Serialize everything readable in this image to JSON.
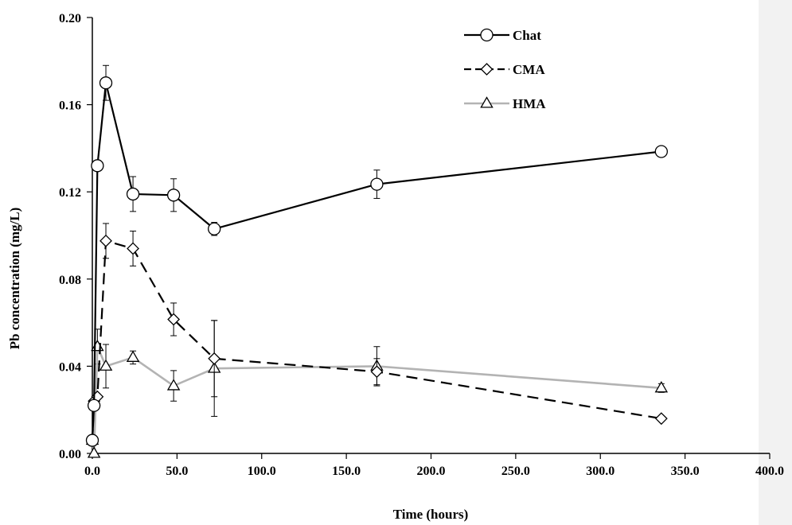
{
  "chart_data": {
    "type": "line",
    "xlabel": "Time (hours)",
    "ylabel": "Pb concentration (mg/L)",
    "xlim": [
      0,
      400
    ],
    "ylim": [
      0,
      0.2
    ],
    "x_ticks": [
      "0.0",
      "50.0",
      "100.0",
      "150.0",
      "200.0",
      "250.0",
      "300.0",
      "350.0",
      "400.0"
    ],
    "y_ticks": [
      "0.00",
      "0.04",
      "0.08",
      "0.12",
      "0.16",
      "0.20"
    ],
    "grid": false,
    "legend_position": "top-right",
    "series": [
      {
        "name": "Chat",
        "marker": "circle",
        "line_style": "solid",
        "color": "#000000",
        "x": [
          0,
          1,
          3,
          8,
          24,
          48,
          72,
          168,
          336
        ],
        "y": [
          0.006,
          0.022,
          0.132,
          0.17,
          0.119,
          0.1185,
          0.103,
          0.1235,
          0.1385
        ],
        "err": [
          0,
          0,
          0,
          0.008,
          0.008,
          0.0075,
          0.003,
          0.0065,
          0
        ]
      },
      {
        "name": "CMA",
        "marker": "diamond",
        "line_style": "dashed",
        "color": "#000000",
        "x": [
          0,
          1,
          3,
          8,
          24,
          48,
          72,
          168,
          336
        ],
        "y": [
          0.006,
          0.024,
          0.026,
          0.0975,
          0.094,
          0.0615,
          0.0435,
          0.0375,
          0.016
        ],
        "err": [
          0,
          0,
          0,
          0.008,
          0.008,
          0.0075,
          0.0175,
          0.006,
          0
        ]
      },
      {
        "name": "HMA",
        "marker": "triangle",
        "line_style": "solid",
        "color": "#b3b3b3",
        "x": [
          0,
          1,
          3,
          8,
          24,
          48,
          72,
          168,
          336
        ],
        "y": [
          0.006,
          0.0,
          0.049,
          0.04,
          0.044,
          0.031,
          0.039,
          0.04,
          0.03
        ],
        "err": [
          0,
          0,
          0.008,
          0.01,
          0.003,
          0.007,
          0.022,
          0.009,
          0.002
        ]
      }
    ]
  }
}
